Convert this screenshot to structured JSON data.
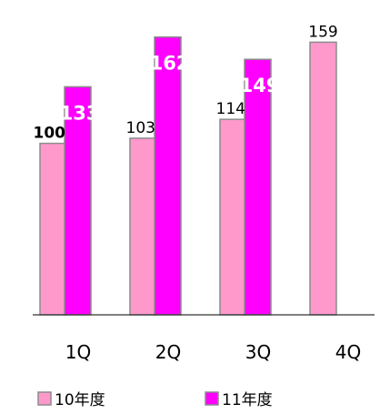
{
  "chart_data": {
    "type": "bar",
    "categories": [
      "1Q",
      "2Q",
      "3Q",
      "4Q"
    ],
    "series": [
      {
        "name": "10年度",
        "values": [
          100,
          103,
          114,
          159
        ],
        "color": "#ff99cc",
        "label_color": "#000000"
      },
      {
        "name": "11年度",
        "values": [
          133,
          162,
          149,
          null
        ],
        "color": "#ff00ff",
        "label_color": "#ffffff"
      }
    ],
    "title": "",
    "xlabel": "",
    "ylabel": "",
    "ylim": [
      0,
      173
    ],
    "grid": false,
    "legend_position": "bottom"
  }
}
